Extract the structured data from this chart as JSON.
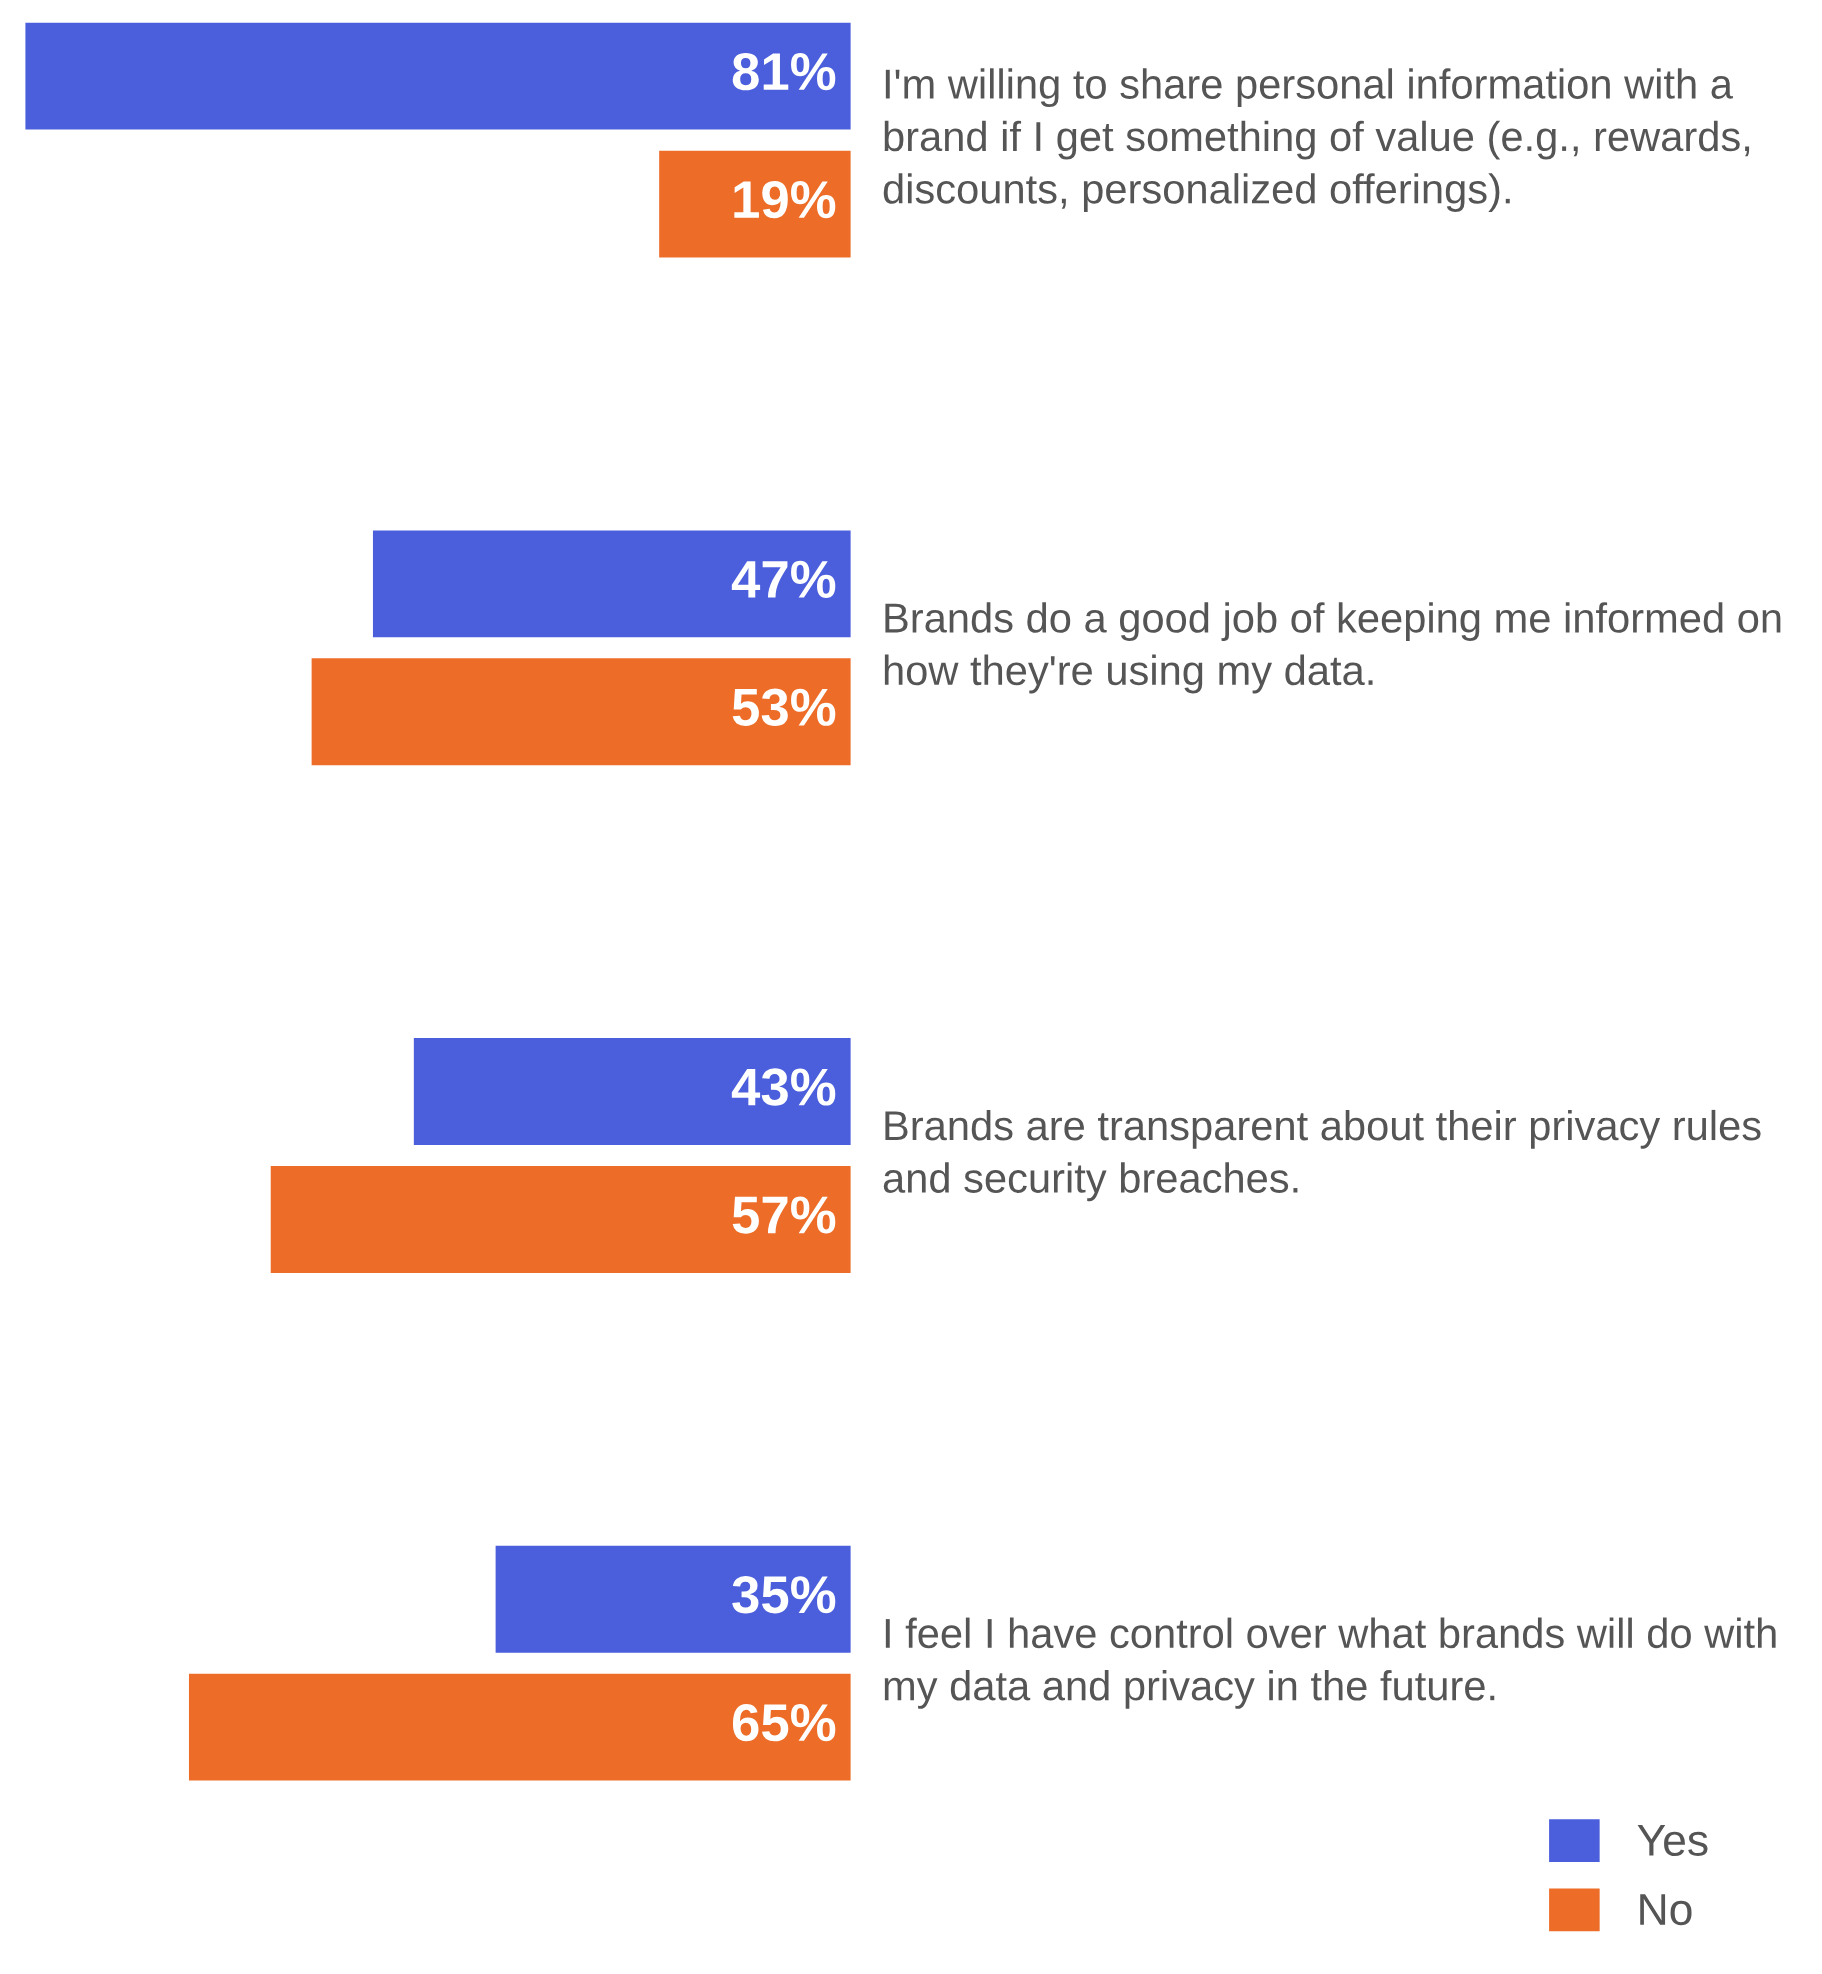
{
  "chart_data": {
    "type": "bar",
    "orientation": "horizontal",
    "legend": "bottom right",
    "categories": [
      "I'm willing to share personal information with a brand if I get something of value (e.g., rewards, discounts, personalized offerings).",
      "Brands do a good job of keeping me informed on how they're using my data.",
      "Brands are transparent about their privacy rules and security breaches.",
      "I feel I have control over what brands will do with my data and privacy in the future."
    ],
    "series": [
      {
        "name": "Yes",
        "color": "#4b5fdc",
        "values": [
          81,
          47,
          43,
          35
        ],
        "value_labels": [
          "81%",
          "47%",
          "43%",
          "35%"
        ]
      },
      {
        "name": "No",
        "color": "#ed6d28",
        "values": [
          19,
          53,
          57,
          65
        ],
        "value_labels": [
          "19%",
          "53%",
          "57%",
          "65%"
        ]
      }
    ]
  }
}
